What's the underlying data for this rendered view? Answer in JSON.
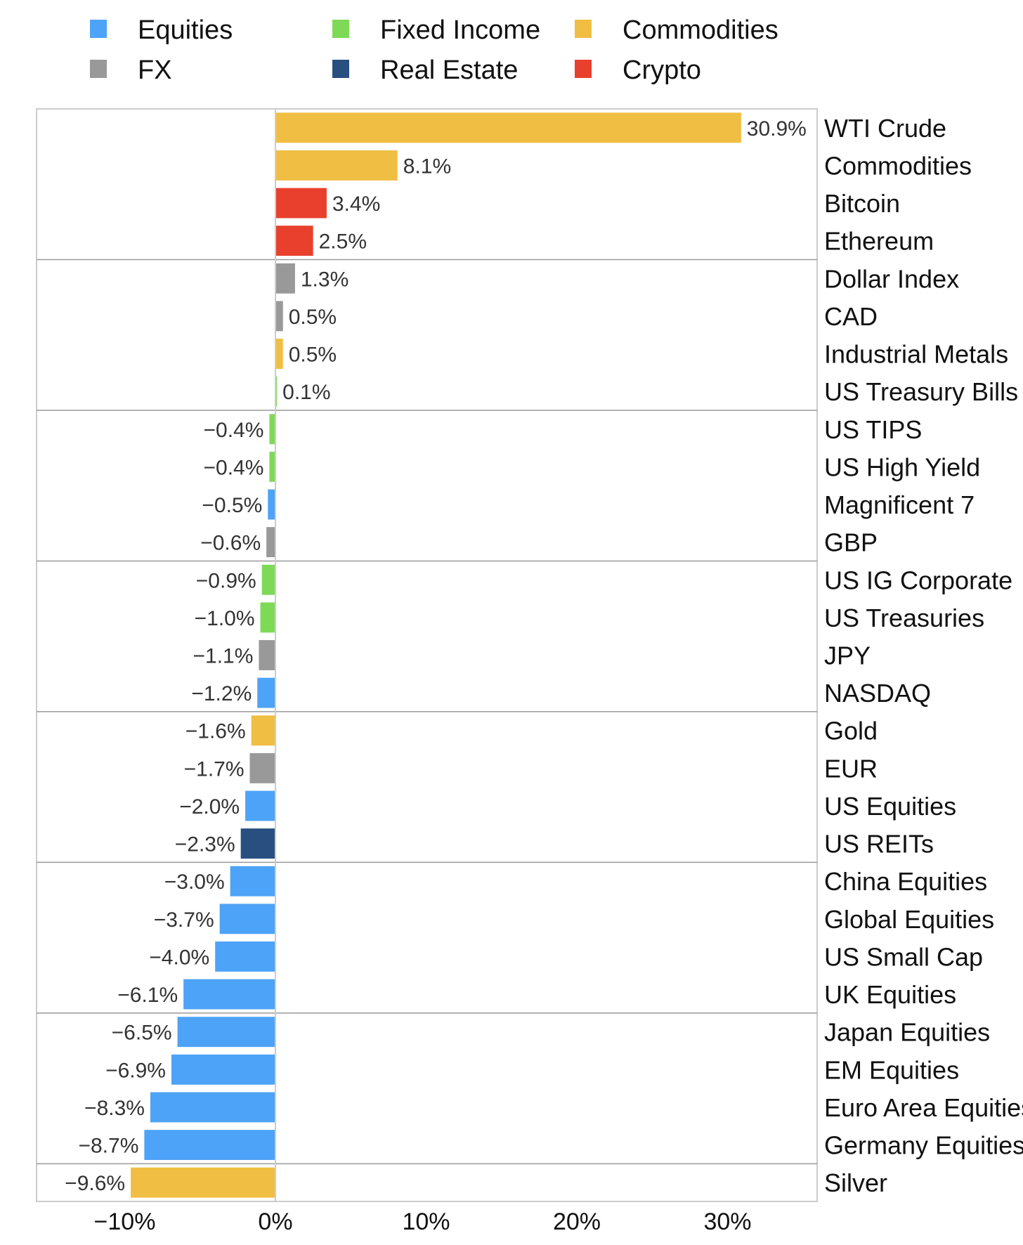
{
  "chart_data": {
    "type": "bar",
    "orientation": "horizontal",
    "title": "",
    "xlabel": "",
    "ylabel": "",
    "xlim": [
      -16,
      36
    ],
    "xticks": [
      -10,
      0,
      10,
      20,
      30
    ],
    "xtick_labels": [
      "−10%",
      "0%",
      "10%",
      "20%",
      "30%"
    ],
    "grid": false,
    "legend_position": "top",
    "legend": [
      {
        "name": "Equities",
        "color": "#4da3f7"
      },
      {
        "name": "Fixed Income",
        "color": "#7ed957"
      },
      {
        "name": "Commodities",
        "color": "#f0be42"
      },
      {
        "name": "FX",
        "color": "#999999"
      },
      {
        "name": "Real Estate",
        "color": "#284f80"
      },
      {
        "name": "Crypto",
        "color": "#e8402c"
      }
    ],
    "group_size": 4,
    "bars": [
      {
        "category": "WTI Crude",
        "value": 30.9,
        "label": "30.9%",
        "class": "Commodities"
      },
      {
        "category": "Commodities",
        "value": 8.1,
        "label": "8.1%",
        "class": "Commodities"
      },
      {
        "category": "Bitcoin",
        "value": 3.4,
        "label": "3.4%",
        "class": "Crypto"
      },
      {
        "category": "Ethereum",
        "value": 2.5,
        "label": "2.5%",
        "class": "Crypto"
      },
      {
        "category": "Dollar Index",
        "value": 1.3,
        "label": "1.3%",
        "class": "FX"
      },
      {
        "category": "CAD",
        "value": 0.5,
        "label": "0.5%",
        "class": "FX"
      },
      {
        "category": "Industrial Metals",
        "value": 0.5,
        "label": "0.5%",
        "class": "Commodities"
      },
      {
        "category": "US Treasury Bills",
        "value": 0.1,
        "label": "0.1%",
        "class": "Fixed Income"
      },
      {
        "category": "US TIPS",
        "value": -0.4,
        "label": "−0.4%",
        "class": "Fixed Income"
      },
      {
        "category": "US High Yield",
        "value": -0.4,
        "label": "−0.4%",
        "class": "Fixed Income"
      },
      {
        "category": "Magnificent 7",
        "value": -0.5,
        "label": "−0.5%",
        "class": "Equities"
      },
      {
        "category": "GBP",
        "value": -0.6,
        "label": "−0.6%",
        "class": "FX"
      },
      {
        "category": "US IG Corporate",
        "value": -0.9,
        "label": "−0.9%",
        "class": "Fixed Income"
      },
      {
        "category": "US Treasuries",
        "value": -1.0,
        "label": "−1.0%",
        "class": "Fixed Income"
      },
      {
        "category": "JPY",
        "value": -1.1,
        "label": "−1.1%",
        "class": "FX"
      },
      {
        "category": "NASDAQ",
        "value": -1.2,
        "label": "−1.2%",
        "class": "Equities"
      },
      {
        "category": "Gold",
        "value": -1.6,
        "label": "−1.6%",
        "class": "Commodities"
      },
      {
        "category": "EUR",
        "value": -1.7,
        "label": "−1.7%",
        "class": "FX"
      },
      {
        "category": "US Equities",
        "value": -2.0,
        "label": "−2.0%",
        "class": "Equities"
      },
      {
        "category": "US REITs",
        "value": -2.3,
        "label": "−2.3%",
        "class": "Real Estate"
      },
      {
        "category": "China Equities",
        "value": -3.0,
        "label": "−3.0%",
        "class": "Equities"
      },
      {
        "category": "Global Equities",
        "value": -3.7,
        "label": "−3.7%",
        "class": "Equities"
      },
      {
        "category": "US Small Cap",
        "value": -4.0,
        "label": "−4.0%",
        "class": "Equities"
      },
      {
        "category": "UK Equities",
        "value": -6.1,
        "label": "−6.1%",
        "class": "Equities"
      },
      {
        "category": "Japan Equities",
        "value": -6.5,
        "label": "−6.5%",
        "class": "Equities"
      },
      {
        "category": "EM Equities",
        "value": -6.9,
        "label": "−6.9%",
        "class": "Equities"
      },
      {
        "category": "Euro Area Equities",
        "value": -8.3,
        "label": "−8.3%",
        "class": "Equities"
      },
      {
        "category": "Germany Equities",
        "value": -8.7,
        "label": "−8.7%",
        "class": "Equities"
      },
      {
        "category": "Silver",
        "value": -9.6,
        "label": "−9.6%",
        "class": "Commodities"
      }
    ]
  }
}
